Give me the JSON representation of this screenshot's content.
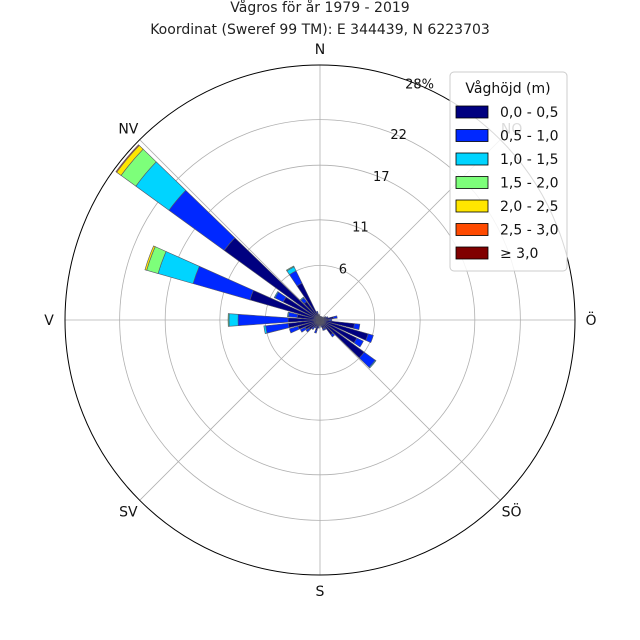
{
  "chart_data": {
    "type": "wind-rose",
    "title": "Vågros för år 1979 - 2019",
    "subtitle": "Koordinat (Sweref 99 TM): E 344439, N 6223703",
    "directions": [
      "N",
      "NO",
      "Ö",
      "SÖ",
      "S",
      "SV",
      "V",
      "NV"
    ],
    "sector_count": 36,
    "radial_ticks": [
      "6",
      "11",
      "17",
      "22",
      "28%"
    ],
    "r_max": 28,
    "legend_title": "Våghöjd (m)",
    "legend_position": "top-right",
    "series": [
      {
        "name": "0,0 - 0,5",
        "color": "#000080"
      },
      {
        "name": "0,5 - 1,0",
        "color": "#0028ff"
      },
      {
        "name": "1,0 - 1,5",
        "color": "#00d4ff"
      },
      {
        "name": "1,5 - 2,0",
        "color": "#7dff7a"
      },
      {
        "name": "2,0 - 2,5",
        "color": "#ffe600"
      },
      {
        "name": "2,5 - 3,0",
        "color": "#ff4a00"
      },
      {
        "name": "≥ 3,0",
        "color": "#800000"
      }
    ],
    "sectors": [
      {
        "dir": 0,
        "values": [
          0.3,
          0.1,
          0,
          0,
          0,
          0,
          0
        ]
      },
      {
        "dir": 10,
        "values": [
          0.3,
          0.1,
          0,
          0,
          0,
          0,
          0
        ]
      },
      {
        "dir": 20,
        "values": [
          0.3,
          0.1,
          0,
          0,
          0,
          0,
          0
        ]
      },
      {
        "dir": 30,
        "values": [
          0.3,
          0.1,
          0,
          0,
          0,
          0,
          0
        ]
      },
      {
        "dir": 40,
        "values": [
          0.3,
          0.1,
          0,
          0,
          0,
          0,
          0
        ]
      },
      {
        "dir": 50,
        "values": [
          0.3,
          0.1,
          0,
          0,
          0,
          0,
          0
        ]
      },
      {
        "dir": 60,
        "values": [
          0.5,
          0.2,
          0,
          0,
          0,
          0,
          0
        ]
      },
      {
        "dir": 70,
        "values": [
          0.7,
          0.2,
          0,
          0,
          0,
          0,
          0
        ]
      },
      {
        "dir": 80,
        "values": [
          1.5,
          0.4,
          0,
          0,
          0,
          0,
          0
        ]
      },
      {
        "dir": 90,
        "values": [
          1.0,
          0.3,
          0,
          0,
          0,
          0,
          0
        ]
      },
      {
        "dir": 100,
        "values": [
          3.8,
          0.6,
          0,
          0,
          0,
          0,
          0
        ]
      },
      {
        "dir": 110,
        "values": [
          5.5,
          0.6,
          0,
          0,
          0,
          0,
          0
        ]
      },
      {
        "dir": 120,
        "values": [
          4.5,
          0.8,
          0,
          0,
          0,
          0,
          0
        ]
      },
      {
        "dir": 130,
        "values": [
          6.0,
          1.5,
          0.1,
          0,
          0,
          0,
          0
        ]
      },
      {
        "dir": 140,
        "values": [
          2.0,
          0.3,
          0,
          0,
          0,
          0,
          0
        ]
      },
      {
        "dir": 150,
        "values": [
          1.0,
          0.2,
          0,
          0,
          0,
          0,
          0
        ]
      },
      {
        "dir": 160,
        "values": [
          1.0,
          0.2,
          0,
          0,
          0,
          0,
          0
        ]
      },
      {
        "dir": 170,
        "values": [
          0.6,
          0.2,
          0,
          0,
          0,
          0,
          0
        ]
      },
      {
        "dir": 180,
        "values": [
          0.5,
          0.1,
          0,
          0,
          0,
          0,
          0
        ]
      },
      {
        "dir": 190,
        "values": [
          0.7,
          0.2,
          0,
          0,
          0,
          0,
          0
        ]
      },
      {
        "dir": 200,
        "values": [
          1.2,
          0.3,
          0,
          0,
          0,
          0,
          0
        ]
      },
      {
        "dir": 210,
        "values": [
          0.8,
          0.2,
          0,
          0,
          0,
          0,
          0
        ]
      },
      {
        "dir": 220,
        "values": [
          1.0,
          0.3,
          0,
          0,
          0,
          0,
          0
        ]
      },
      {
        "dir": 230,
        "values": [
          1.5,
          0.4,
          0,
          0,
          0,
          0,
          0
        ]
      },
      {
        "dir": 240,
        "values": [
          1.8,
          0.6,
          0,
          0,
          0,
          0,
          0
        ]
      },
      {
        "dir": 250,
        "values": [
          2.5,
          1.0,
          0,
          0,
          0,
          0,
          0
        ]
      },
      {
        "dir": 260,
        "values": [
          3.5,
          2.5,
          0.2,
          0,
          0,
          0,
          0
        ]
      },
      {
        "dir": 270,
        "values": [
          3.5,
          5.5,
          1.0,
          0.1,
          0,
          0,
          0
        ]
      },
      {
        "dir": 280,
        "values": [
          2.5,
          1.0,
          0.1,
          0,
          0,
          0,
          0
        ]
      },
      {
        "dir": 290,
        "values": [
          8.0,
          6.5,
          4.0,
          1.3,
          0.2,
          0,
          0
        ]
      },
      {
        "dir": 300,
        "values": [
          4.5,
          1.0,
          0.1,
          0,
          0,
          0,
          0
        ]
      },
      {
        "dir": 310,
        "values": [
          13.0,
          7.5,
          4.5,
          2.0,
          0.6,
          0.1,
          0
        ]
      },
      {
        "dir": 320,
        "values": [
          2.5,
          0.5,
          0.1,
          0,
          0,
          0,
          0
        ]
      },
      {
        "dir": 330,
        "values": [
          4.5,
          1.5,
          0.5,
          0.1,
          0,
          0,
          0
        ]
      },
      {
        "dir": 340,
        "values": [
          0.8,
          0.2,
          0,
          0,
          0,
          0,
          0
        ]
      },
      {
        "dir": 350,
        "values": [
          0.5,
          0.1,
          0,
          0,
          0,
          0,
          0
        ]
      }
    ]
  }
}
